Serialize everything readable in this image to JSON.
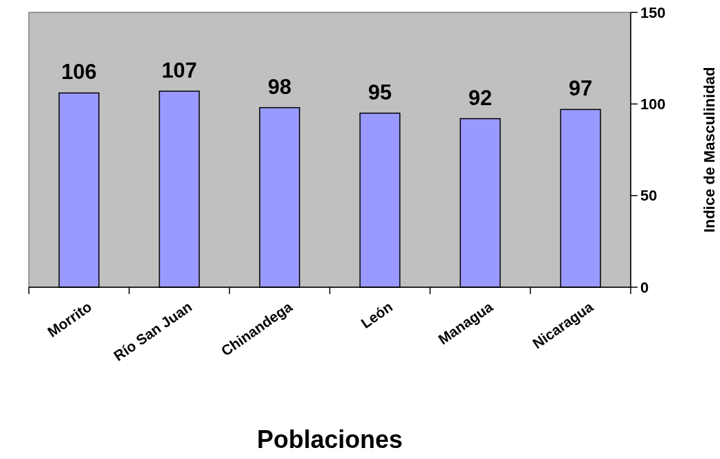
{
  "chart_data": {
    "type": "bar",
    "xlabel": "Poblaciones",
    "ylabel": "Indice de Masculinidad",
    "categories": [
      "Morrito",
      "Río San Juan",
      "Chinandega",
      "León",
      "Managua",
      "Nicaragua"
    ],
    "values": [
      106,
      107,
      98,
      95,
      92,
      97
    ],
    "color": "#9999ff",
    "ylim": [
      0,
      150
    ],
    "yticks": [
      0,
      50,
      100,
      150
    ],
    "data_labels": true
  }
}
